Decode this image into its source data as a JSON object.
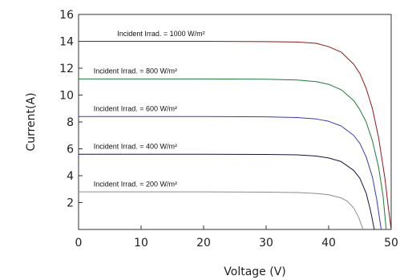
{
  "chart_data": {
    "type": "line",
    "title": "",
    "xlabel": "Voltage (V)",
    "ylabel": "Current(A)",
    "xlim": [
      0,
      50
    ],
    "ylim": [
      0,
      16
    ],
    "x_ticks": [
      0,
      10,
      20,
      30,
      40,
      50
    ],
    "y_ticks": [
      2,
      4,
      6,
      8,
      10,
      12,
      14,
      16
    ],
    "grid": false,
    "series": [
      {
        "name": "Incident Irrad. = 1000 W/m²",
        "color": "#8b1a1a",
        "x": [
          0,
          10,
          20,
          30,
          35,
          38,
          40,
          42,
          44,
          45,
          46,
          47,
          48,
          49,
          49.5,
          50
        ],
        "y": [
          14.0,
          14.0,
          14.0,
          13.98,
          13.95,
          13.85,
          13.6,
          13.2,
          12.3,
          11.6,
          10.5,
          9.0,
          6.8,
          3.8,
          1.8,
          0.0
        ]
      },
      {
        "name": "Incident Irrad. = 800 W/m²",
        "color": "#1f7a3a",
        "x": [
          0,
          10,
          20,
          30,
          35,
          38,
          40,
          42,
          44,
          45,
          46,
          47,
          48,
          48.7,
          49.2
        ],
        "y": [
          11.2,
          11.2,
          11.2,
          11.18,
          11.12,
          11.0,
          10.8,
          10.4,
          9.6,
          8.9,
          8.0,
          6.6,
          4.6,
          2.5,
          0.0
        ]
      },
      {
        "name": "Incident Irrad. = 600 W/m²",
        "color": "#3a3aa8",
        "x": [
          0,
          10,
          20,
          30,
          35,
          38,
          40,
          42,
          44,
          45,
          46,
          47,
          47.7,
          48.4
        ],
        "y": [
          8.4,
          8.4,
          8.4,
          8.38,
          8.33,
          8.22,
          8.05,
          7.7,
          7.0,
          6.4,
          5.4,
          3.9,
          2.2,
          0.0
        ]
      },
      {
        "name": "Incident Irrad. = 400 W/m²",
        "color": "#14143c",
        "x": [
          0,
          10,
          20,
          30,
          35,
          38,
          40,
          42,
          44,
          45,
          46,
          46.7,
          47.3
        ],
        "y": [
          5.6,
          5.6,
          5.6,
          5.58,
          5.55,
          5.46,
          5.32,
          5.05,
          4.4,
          3.8,
          2.7,
          1.4,
          0.0
        ]
      },
      {
        "name": "Incident Irrad. = 200 W/m²",
        "color": "#8c8c8c",
        "x": [
          0,
          10,
          20,
          30,
          35,
          38,
          40,
          42,
          43,
          44,
          44.8,
          45.5
        ],
        "y": [
          2.8,
          2.8,
          2.8,
          2.78,
          2.75,
          2.68,
          2.58,
          2.35,
          2.1,
          1.6,
          0.9,
          0.0
        ]
      }
    ],
    "annotations": [
      {
        "text": "Incident Irrad. = 1000 W/m²",
        "x": 6.2,
        "y": 14.4
      },
      {
        "text": "Incident Irrad. = 800 W/m²",
        "x": 2.4,
        "y": 11.6
      },
      {
        "text": "Incident Irrad. = 600 W/m²",
        "x": 2.4,
        "y": 8.8
      },
      {
        "text": "Incident Irrad. = 400 W/m²",
        "x": 2.4,
        "y": 6.0
      },
      {
        "text": "Incident Irrad. = 200 W/m²",
        "x": 2.4,
        "y": 3.2
      }
    ]
  }
}
